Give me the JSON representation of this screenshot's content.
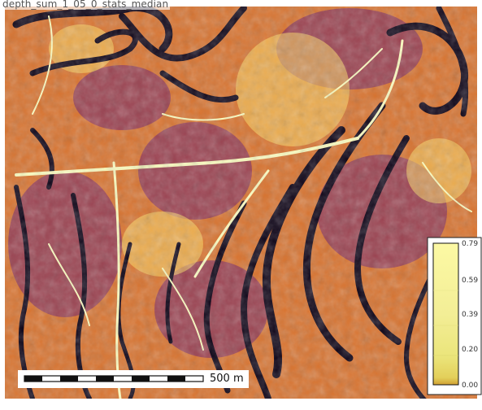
{
  "map": {
    "title": "depth_sum_1_05_0_stats_median",
    "colormap": [
      "#000004",
      "#2b0a5e",
      "#6a1b6e",
      "#b5366b",
      "#e85d3a",
      "#f99e2a",
      "#fbd866",
      "#fcfdbf"
    ]
  },
  "scalebar": {
    "label": "500 m"
  },
  "legend": {
    "ticks": [
      "0.79",
      "0.59",
      "0.39",
      "0.20",
      "0.00"
    ],
    "gradient_colors": [
      "#fcf9a4",
      "#f6f19a",
      "#ecea86",
      "#e7e56d",
      "#d6b83a"
    ]
  }
}
